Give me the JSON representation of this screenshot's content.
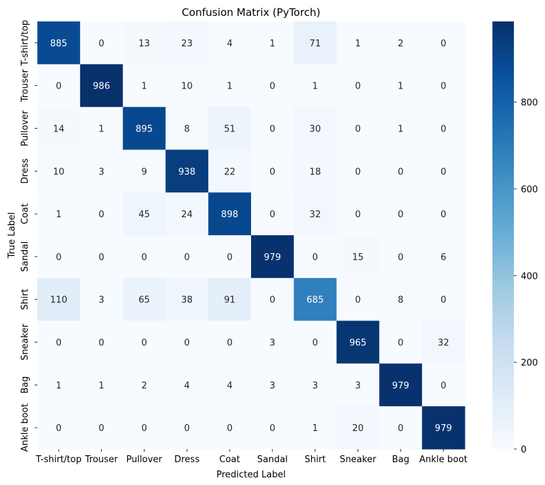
{
  "chart_data": {
    "type": "heatmap",
    "title": "Confusion Matrix (PyTorch)",
    "xlabel": "Predicted Label",
    "ylabel": "True Label",
    "x_categories": [
      "T-shirt/top",
      "Trouser",
      "Pullover",
      "Dress",
      "Coat",
      "Sandal",
      "Shirt",
      "Sneaker",
      "Bag",
      "Ankle boot"
    ],
    "y_categories": [
      "T-shirt/top",
      "Trouser",
      "Pullover",
      "Dress",
      "Coat",
      "Sandal",
      "Shirt",
      "Sneaker",
      "Bag",
      "Ankle boot"
    ],
    "matrix": [
      [
        885,
        0,
        13,
        23,
        4,
        1,
        71,
        1,
        2,
        0
      ],
      [
        0,
        986,
        1,
        10,
        1,
        0,
        1,
        0,
        1,
        0
      ],
      [
        14,
        1,
        895,
        8,
        51,
        0,
        30,
        0,
        1,
        0
      ],
      [
        10,
        3,
        9,
        938,
        22,
        0,
        18,
        0,
        0,
        0
      ],
      [
        1,
        0,
        45,
        24,
        898,
        0,
        32,
        0,
        0,
        0
      ],
      [
        0,
        0,
        0,
        0,
        0,
        979,
        0,
        15,
        0,
        6
      ],
      [
        110,
        3,
        65,
        38,
        91,
        0,
        685,
        0,
        8,
        0
      ],
      [
        0,
        0,
        0,
        0,
        0,
        3,
        0,
        965,
        0,
        32
      ],
      [
        1,
        1,
        2,
        4,
        4,
        3,
        3,
        3,
        979,
        0
      ],
      [
        0,
        0,
        0,
        0,
        0,
        0,
        1,
        20,
        0,
        979
      ]
    ],
    "colorbar": {
      "cmap": "Blues",
      "vmin": 0,
      "vmax": 986,
      "ticks": [
        0,
        200,
        400,
        600,
        800
      ]
    }
  }
}
